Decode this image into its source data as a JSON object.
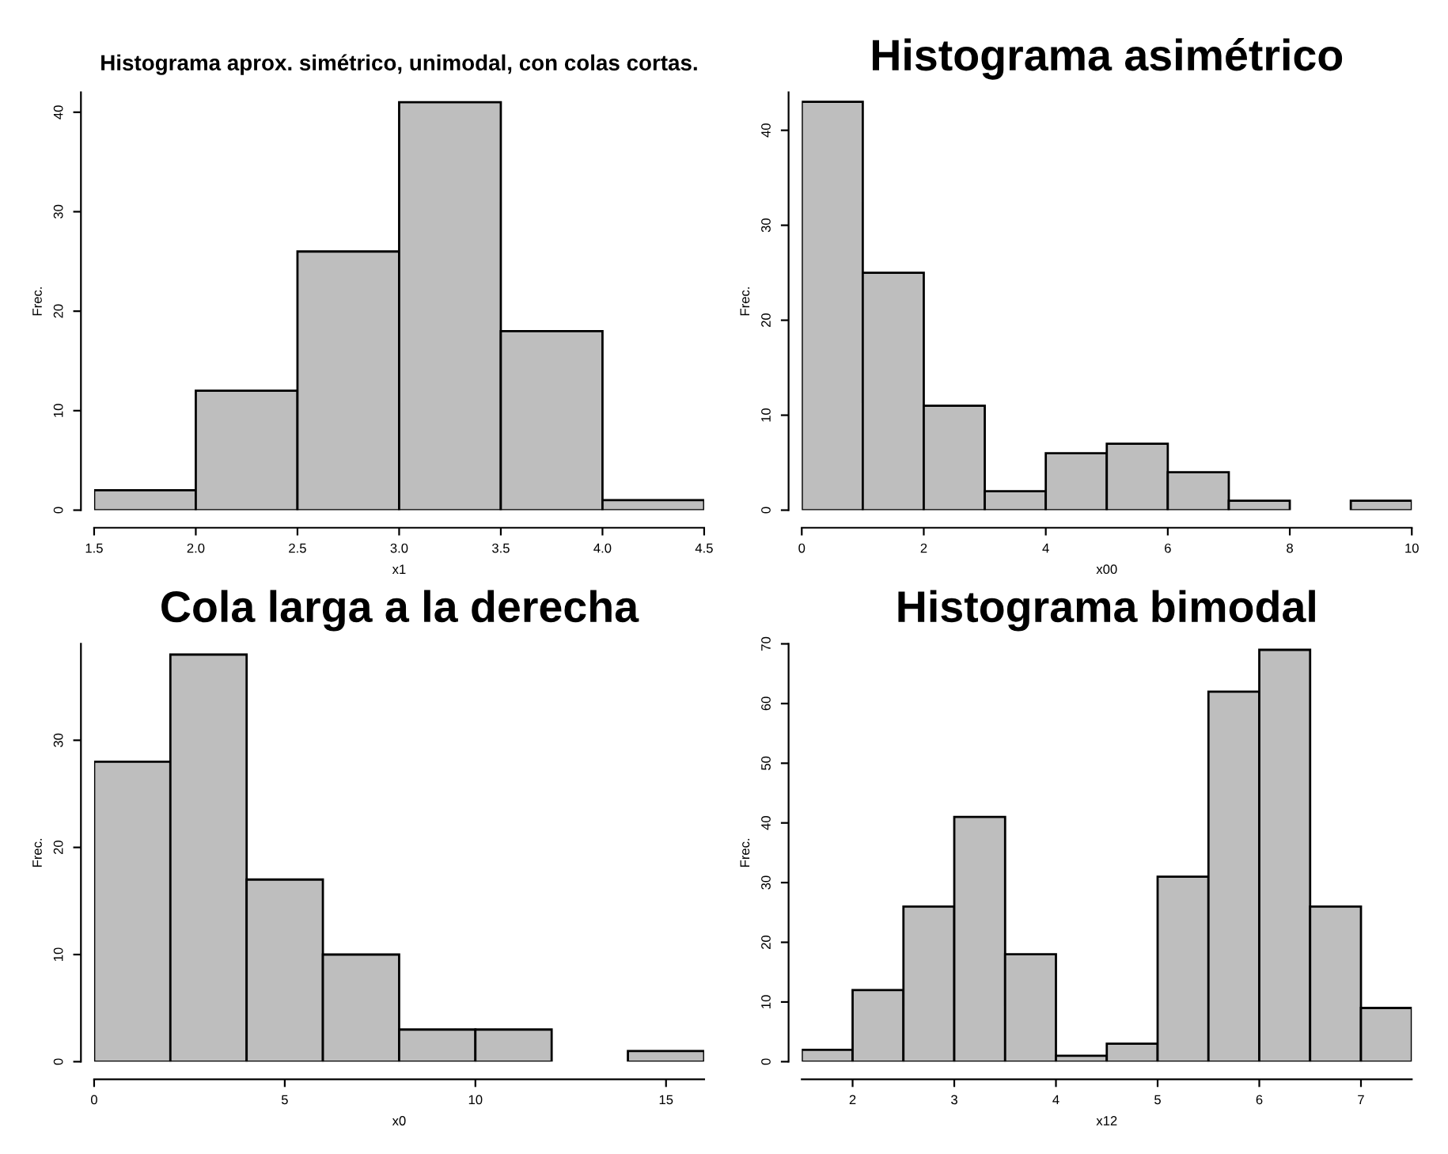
{
  "chart_data": [
    {
      "type": "histogram",
      "title": "Histograma aprox. simétrico, unimodal, con colas cortas.",
      "xlabel": "x1",
      "ylabel": "Frec.",
      "color": "#bebebe",
      "bins": [
        1.5,
        2.0,
        2.5,
        3.0,
        3.5,
        4.0,
        4.5
      ],
      "values": [
        2,
        12,
        26,
        41,
        18,
        1
      ],
      "xlim": [
        1.5,
        4.5
      ],
      "xticks": [
        1.5,
        {
          "value": 2,
          "label": "2.0"
        },
        2.5,
        {
          "value": 3,
          "label": "3.0"
        },
        3.5,
        {
          "value": 4,
          "label": "4.0"
        },
        4.5
      ],
      "ylim": [
        0,
        42
      ],
      "yticks": [
        0,
        10,
        20,
        30,
        40
      ]
    },
    {
      "type": "histogram",
      "title": "Histograma asimétrico",
      "xlabel": "x00",
      "ylabel": "Frec.",
      "color": "#bebebe",
      "bins": [
        0,
        1,
        2,
        3,
        4,
        5,
        6,
        7,
        8,
        9,
        10
      ],
      "values": [
        43,
        25,
        11,
        2,
        6,
        7,
        4,
        1,
        0,
        1
      ],
      "xlim": [
        0,
        10
      ],
      "xticks": [
        0,
        2,
        4,
        6,
        8,
        10
      ],
      "ylim": [
        0,
        44
      ],
      "yticks": [
        0,
        10,
        20,
        30,
        40
      ]
    },
    {
      "type": "histogram",
      "title": "Cola larga a la derecha",
      "xlabel": "x0",
      "ylabel": "Frec.",
      "color": "#bebebe",
      "bins": [
        0,
        2,
        4,
        6,
        8,
        10,
        12,
        14,
        16
      ],
      "values": [
        28,
        38,
        17,
        10,
        3,
        3,
        0,
        1
      ],
      "xlim": [
        0,
        16
      ],
      "xticks": [
        0,
        5,
        10,
        15
      ],
      "ylim": [
        0,
        39
      ],
      "yticks": [
        0,
        10,
        20,
        30
      ]
    },
    {
      "type": "histogram",
      "title": "Histograma bimodal",
      "xlabel": "x12",
      "ylabel": "Frec.",
      "color": "#bebebe",
      "bins": [
        1.5,
        2.0,
        2.5,
        3.0,
        3.5,
        4.0,
        4.5,
        5.0,
        5.5,
        6.0,
        6.5,
        7.0,
        7.5
      ],
      "values": [
        2,
        12,
        26,
        41,
        18,
        1,
        3,
        31,
        62,
        69,
        26,
        9
      ],
      "xlim": [
        1.5,
        7.5
      ],
      "xticks": [
        2,
        3,
        4,
        5,
        6,
        7
      ],
      "ylim": [
        0,
        70
      ],
      "yticks": [
        0,
        10,
        20,
        30,
        40,
        50,
        60,
        70
      ]
    }
  ]
}
